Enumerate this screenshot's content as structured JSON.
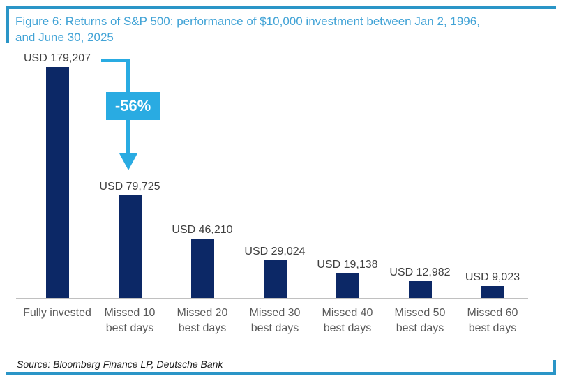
{
  "colors": {
    "bar_navy": "#0c2866",
    "accent_cyan": "#29abe2",
    "title_blue": "#41a3d6",
    "rule_blue": "#2a95c7",
    "value_label_gray": "#404040",
    "category_label_gray": "#595959",
    "axis_line_gray": "#c0c0c0",
    "source_text": "#1a1a1a",
    "annotation_text": "#ffffff"
  },
  "header": {
    "title_lines": [
      "Figure 6: Returns of S&P 500: performance of $10,000 investment between Jan 2, 1996,",
      "and June 30, 2025"
    ]
  },
  "footer": {
    "source": "Source: Bloomberg Finance LP, Deutsche Bank"
  },
  "chart_data": {
    "type": "bar",
    "title": "Figure 6: Returns of S&P 500: performance of $10,000 investment between Jan 2, 1996, and June 30, 2025",
    "categories": [
      "Fully invested",
      "Missed 10\nbest days",
      "Missed 20\nbest days",
      "Missed 30\nbest days",
      "Missed 40\nbest days",
      "Missed 50\nbest days",
      "Missed 60\nbest days"
    ],
    "values": [
      179207,
      79725,
      46210,
      29024,
      19138,
      12982,
      9023
    ],
    "value_labels": [
      "USD 179,207",
      "USD 79,725",
      "USD 46,210",
      "USD 29,024",
      "USD 19,138",
      "USD 12,982",
      "USD 9,023"
    ],
    "currency": "USD",
    "xlabel": "",
    "ylabel": "",
    "ylim": [
      0,
      180000
    ],
    "grid": false,
    "legend": false,
    "bar_color": "#0c2866",
    "annotation": {
      "text": "-56%",
      "from_category": "Fully invested",
      "to_category": "Missed 10 best days"
    },
    "source": "Source: Bloomberg Finance LP, Deutsche Bank"
  }
}
